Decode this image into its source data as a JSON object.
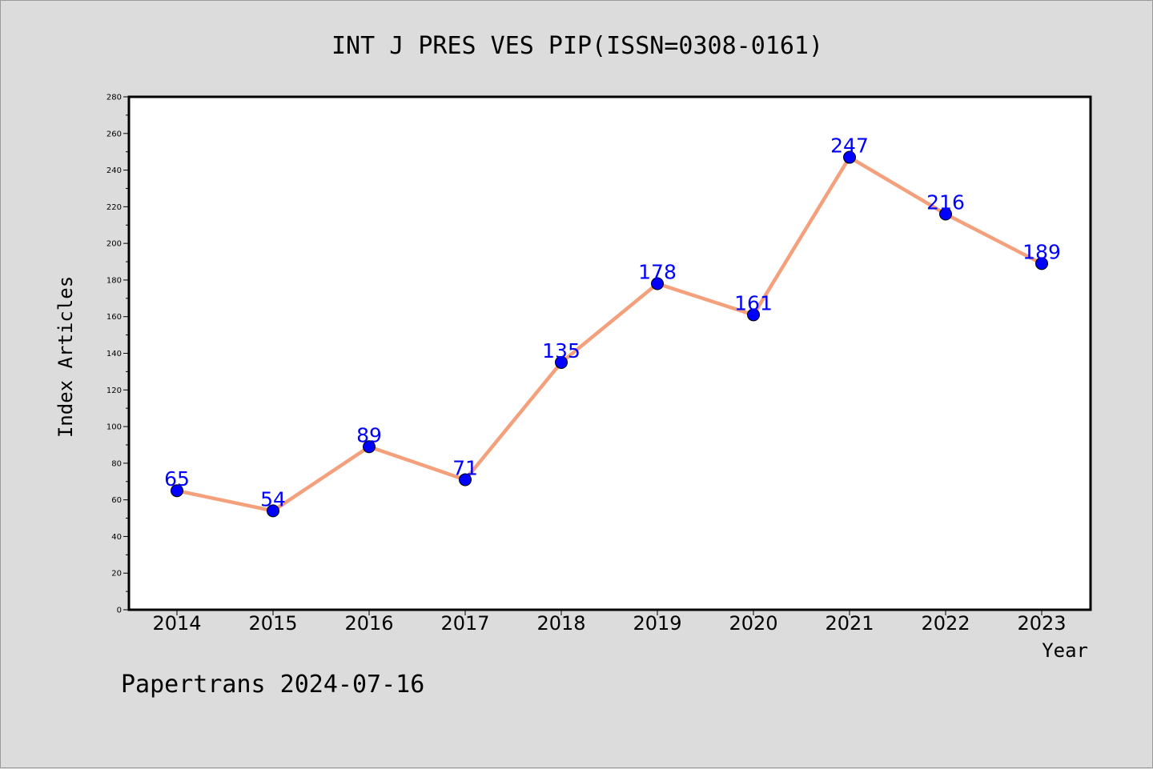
{
  "colors": {
    "background": "#dcdcdc",
    "plot_background": "#ffffff",
    "line": "#f4a07c",
    "marker": "#0000ff",
    "data_label": "#0000ff"
  },
  "footer": "Papertrans 2024-07-16",
  "chart_data": {
    "type": "line",
    "title": "INT J PRES VES PIP(ISSN=0308-0161)",
    "xlabel": "Year",
    "ylabel": "Index Articles",
    "categories": [
      "2014",
      "2015",
      "2016",
      "2017",
      "2018",
      "2019",
      "2020",
      "2021",
      "2022",
      "2023"
    ],
    "series": [
      {
        "values": [
          65,
          54,
          89,
          71,
          135,
          178,
          161,
          247,
          216,
          189
        ]
      }
    ],
    "ylim": [
      0,
      280
    ],
    "yticks": [
      0,
      20,
      40,
      60,
      80,
      100,
      120,
      140,
      160,
      180,
      200,
      220,
      240,
      260,
      280
    ],
    "grid": false,
    "legend": "none"
  }
}
